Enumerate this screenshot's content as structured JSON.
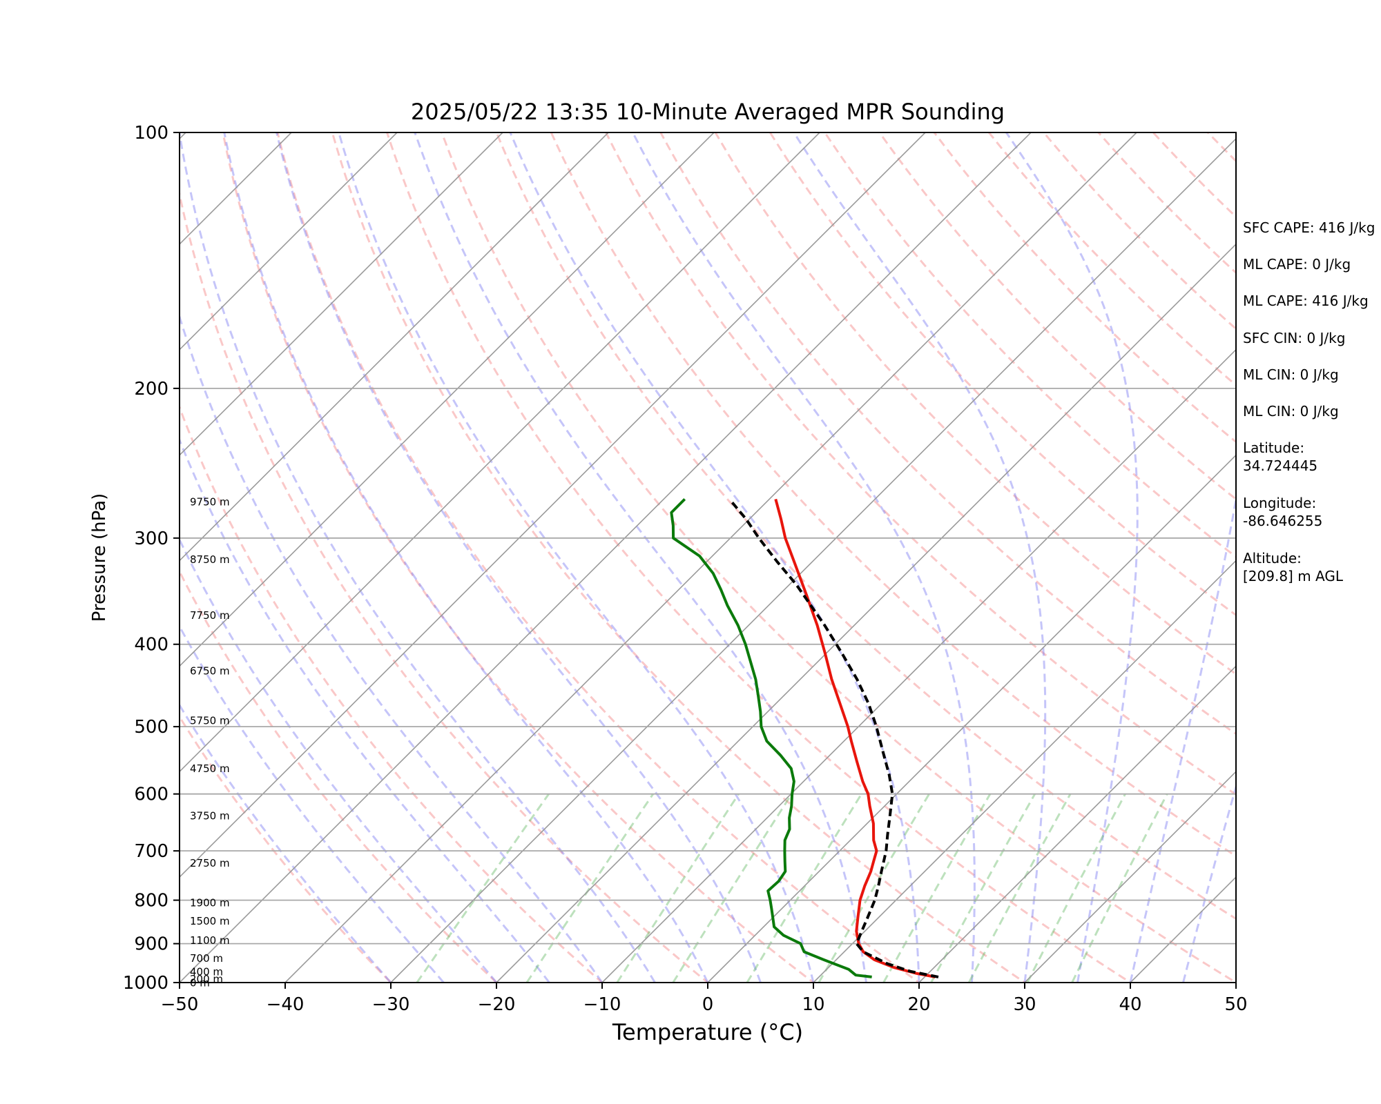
{
  "chart_data": {
    "type": "line",
    "title": "2025/05/22 13:35 10-Minute Averaged MPR Sounding",
    "xlabel": "Temperature (°C)",
    "ylabel": "Pressure (hPa)",
    "xlim": [
      -50,
      50
    ],
    "ylim": [
      1000,
      100
    ],
    "yscale": "log",
    "xticks": [
      "−50",
      "−40",
      "−30",
      "−20",
      "−10",
      "0",
      "10",
      "20",
      "30",
      "40",
      "50"
    ],
    "yticks": [
      "100",
      "200",
      "300",
      "400",
      "500",
      "600",
      "700",
      "800",
      "900",
      "1000"
    ],
    "grid": "horizontal isobars at tick pressures",
    "skew_note": "skew-T log-p diagram with dry adiabats, moist adiabats, mixing-ratio lines and skewed isotherms",
    "height_labels": [
      {
        "text": "9750 m",
        "p": 272
      },
      {
        "text": "8750 m",
        "p": 318
      },
      {
        "text": "7750 m",
        "p": 370
      },
      {
        "text": "6750 m",
        "p": 430
      },
      {
        "text": "5750 m",
        "p": 492
      },
      {
        "text": "4750 m",
        "p": 560
      },
      {
        "text": "3750 m",
        "p": 637
      },
      {
        "text": "2750 m",
        "p": 724
      },
      {
        "text": "1900 m",
        "p": 806
      },
      {
        "text": "1500 m",
        "p": 847
      },
      {
        "text": "1100 m",
        "p": 892
      },
      {
        "text": "700 m",
        "p": 937
      },
      {
        "text": "400 m",
        "p": 971
      },
      {
        "text": "200 m",
        "p": 991
      },
      {
        "text": "0 m",
        "p": 1001
      }
    ],
    "series": [
      {
        "color": "#e8150c",
        "style": "solid",
        "points": [
          [
            985,
            21.0
          ],
          [
            975,
            18.8
          ],
          [
            960,
            16.2
          ],
          [
            940,
            13.6
          ],
          [
            920,
            11.8
          ],
          [
            900,
            10.6
          ],
          [
            870,
            9.2
          ],
          [
            840,
            8.1
          ],
          [
            800,
            6.6
          ],
          [
            770,
            5.7
          ],
          [
            740,
            4.9
          ],
          [
            720,
            4.2
          ],
          [
            700,
            3.5
          ],
          [
            680,
            2.2
          ],
          [
            650,
            0.6
          ],
          [
            620,
            -1.4
          ],
          [
            600,
            -2.7
          ],
          [
            580,
            -4.4
          ],
          [
            550,
            -6.8
          ],
          [
            520,
            -9.3
          ],
          [
            500,
            -11.0
          ],
          [
            470,
            -13.9
          ],
          [
            440,
            -17.0
          ],
          [
            410,
            -20.1
          ],
          [
            380,
            -23.5
          ],
          [
            350,
            -27.4
          ],
          [
            320,
            -31.7
          ],
          [
            300,
            -34.8
          ],
          [
            285,
            -37.0
          ],
          [
            270,
            -39.4
          ]
        ]
      },
      {
        "color": "#000000",
        "style": "dashed",
        "points": [
          [
            985,
            21.3
          ],
          [
            970,
            18.1
          ],
          [
            950,
            15.2
          ],
          [
            920,
            11.8
          ],
          [
            900,
            10.4
          ],
          [
            870,
            9.7
          ],
          [
            840,
            9.0
          ],
          [
            800,
            8.0
          ],
          [
            770,
            7.0
          ],
          [
            740,
            5.9
          ],
          [
            700,
            4.4
          ],
          [
            670,
            3.0
          ],
          [
            640,
            1.6
          ],
          [
            600,
            -0.4
          ],
          [
            570,
            -2.5
          ],
          [
            540,
            -4.9
          ],
          [
            500,
            -8.3
          ],
          [
            470,
            -11.2
          ],
          [
            440,
            -14.6
          ],
          [
            410,
            -18.5
          ],
          [
            380,
            -22.8
          ],
          [
            360,
            -26.0
          ],
          [
            340,
            -29.4
          ],
          [
            320,
            -33.3
          ],
          [
            300,
            -37.3
          ],
          [
            285,
            -40.3
          ],
          [
            272,
            -43.3
          ]
        ]
      },
      {
        "color": "#0b7a0b",
        "style": "solid",
        "points": [
          [
            985,
            15.0
          ],
          [
            980,
            13.3
          ],
          [
            965,
            12.1
          ],
          [
            940,
            8.8
          ],
          [
            920,
            6.2
          ],
          [
            900,
            5.1
          ],
          [
            880,
            2.7
          ],
          [
            860,
            1.0
          ],
          [
            845,
            0.3
          ],
          [
            820,
            -0.9
          ],
          [
            800,
            -1.9
          ],
          [
            780,
            -3.0
          ],
          [
            760,
            -2.9
          ],
          [
            740,
            -3.2
          ],
          [
            720,
            -4.2
          ],
          [
            700,
            -5.2
          ],
          [
            680,
            -6.2
          ],
          [
            660,
            -6.8
          ],
          [
            640,
            -7.9
          ],
          [
            620,
            -8.8
          ],
          [
            600,
            -9.9
          ],
          [
            580,
            -10.9
          ],
          [
            560,
            -12.4
          ],
          [
            540,
            -14.7
          ],
          [
            520,
            -17.3
          ],
          [
            500,
            -19.2
          ],
          [
            480,
            -20.7
          ],
          [
            460,
            -22.4
          ],
          [
            440,
            -24.2
          ],
          [
            420,
            -26.3
          ],
          [
            400,
            -28.5
          ],
          [
            380,
            -31.0
          ],
          [
            360,
            -33.9
          ],
          [
            345,
            -36.0
          ],
          [
            330,
            -38.3
          ],
          [
            315,
            -41.2
          ],
          [
            300,
            -45.4
          ],
          [
            290,
            -46.6
          ],
          [
            280,
            -48.0
          ],
          [
            270,
            -48.0
          ]
        ]
      }
    ]
  },
  "info": {
    "sfc_cape": "SFC CAPE: 416 J/kg",
    "ml_cape_1": "ML CAPE: 0 J/kg",
    "ml_cape_2": "ML CAPE: 416 J/kg",
    "sfc_cin": "SFC CIN: 0 J/kg",
    "ml_cin_1": "ML CIN: 0 J/kg",
    "ml_cin_2": "ML CIN: 0 J/kg",
    "latitude_label": "Latitude:",
    "latitude_value": "34.724445",
    "longitude_label": "Longitude:",
    "longitude_value": "-86.646255",
    "altitude_label": "Altitude:",
    "altitude_value": "[209.8] m AGL"
  }
}
